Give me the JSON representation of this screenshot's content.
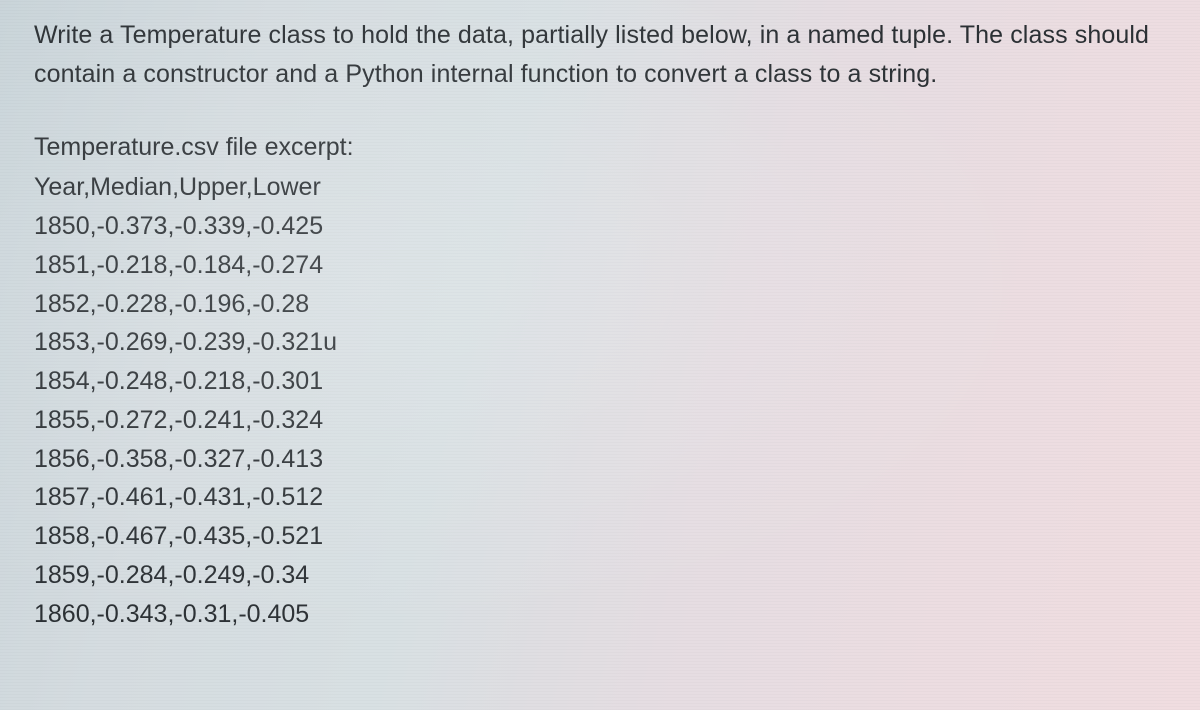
{
  "prompt": {
    "line1": "Write a Temperature class to hold the data, partially listed below, in a named tuple. The class should",
    "line2": "contain a constructor and a Python internal function to convert a class to a string."
  },
  "excerpt_label": "Temperature.csv file excerpt:",
  "csv": {
    "header": "Year,Median,Upper,Lower",
    "rows": [
      "1850,-0.373,-0.339,-0.425",
      "1851,-0.218,-0.184,-0.274",
      "1852,-0.228,-0.196,-0.28",
      "1853,-0.269,-0.239,-0.321u",
      "1854,-0.248,-0.218,-0.301",
      "1855,-0.272,-0.241,-0.324",
      "1856,-0.358,-0.327,-0.413",
      "1857,-0.461,-0.431,-0.512",
      "1858,-0.467,-0.435,-0.521",
      "1859,-0.284,-0.249,-0.34",
      "1860,-0.343,-0.31,-0.405"
    ]
  },
  "style": {
    "text_color": "#2b3034",
    "font_size_pt": 19,
    "font_family": "Segoe UI, Helvetica Neue, Arial, sans-serif",
    "background_gradient": [
      "#c9d4d9",
      "#d5dce0",
      "#d8e0e3",
      "#e5dde2",
      "#ecdde1",
      "#f0dde0"
    ],
    "line_height": 1.55
  }
}
